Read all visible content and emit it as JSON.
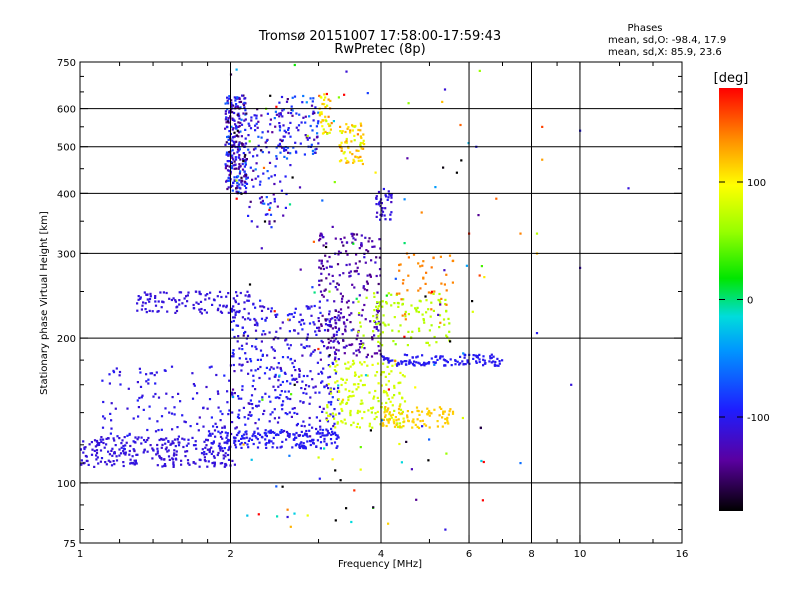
{
  "chart_data": {
    "type": "scatter",
    "title": "Tromsø 20151007 17:58:00-17:59:43",
    "subtitle": "RwPretec (8p)",
    "stats": {
      "heading": "Phases",
      "line_o": "mean, sd,O: -98.4, 17.9",
      "line_x": "mean, sd,X:  85.9, 23.6"
    },
    "xlabel": "Frequency [MHz]",
    "ylabel": "Stationary phase Virtual Height [km]",
    "x_scale": "log",
    "y_scale": "log",
    "xlim": [
      1,
      16
    ],
    "ylim": [
      75,
      750
    ],
    "x_ticks": [
      1,
      2,
      4,
      6,
      8,
      10,
      16
    ],
    "x_tick_labels": [
      "1",
      "2",
      "4",
      "6",
      "8",
      "10",
      "16"
    ],
    "x_minor_ticks": [
      1.2,
      1.4,
      1.6,
      1.8,
      3,
      5,
      7,
      9,
      12,
      14
    ],
    "y_ticks": [
      75,
      100,
      200,
      300,
      400,
      500,
      600,
      750
    ],
    "y_tick_labels": [
      "75",
      "100",
      "200",
      "300",
      "400",
      "500",
      "600",
      "750"
    ],
    "y_minor_ticks": [
      80,
      90,
      110,
      120,
      140,
      160,
      180,
      250,
      350,
      450,
      550,
      650,
      700
    ],
    "grid_x": [
      2,
      4,
      6,
      8,
      10
    ],
    "grid_y": [
      100,
      200,
      300,
      400,
      500,
      600
    ],
    "grid": true,
    "colorbar": {
      "label": "[deg]",
      "min": -180,
      "max": 180,
      "ticks": [
        -100,
        0,
        100
      ],
      "tick_labels": [
        "-100",
        "0",
        "100"
      ]
    },
    "clusters": [
      {
        "f0": 1.0,
        "f1": 2.05,
        "h0": 108,
        "h1": 125,
        "phase": -110,
        "spread": 4,
        "n": 260
      },
      {
        "f0": 1.8,
        "f1": 3.3,
        "h0": 118,
        "h1": 128,
        "phase": -100,
        "spread": 3,
        "n": 160
      },
      {
        "f0": 1.1,
        "f1": 2.0,
        "h0": 115,
        "h1": 175,
        "phase": -105,
        "spread": 8,
        "n": 140
      },
      {
        "f0": 2.0,
        "f1": 3.3,
        "h0": 125,
        "h1": 240,
        "phase": -105,
        "spread": 12,
        "n": 420
      },
      {
        "f0": 1.3,
        "f1": 2.2,
        "h0": 225,
        "h1": 250,
        "phase": -110,
        "spread": 3,
        "n": 120
      },
      {
        "f0": 1.95,
        "f1": 2.15,
        "h0": 400,
        "h1": 640,
        "phase": -115,
        "spread": 35,
        "n": 260
      },
      {
        "f0": 2.15,
        "f1": 2.6,
        "h0": 340,
        "h1": 600,
        "phase": -100,
        "spread": 30,
        "n": 110
      },
      {
        "f0": 2.5,
        "f1": 3.0,
        "h0": 480,
        "h1": 640,
        "phase": -100,
        "spread": 30,
        "n": 90
      },
      {
        "f0": 3.0,
        "f1": 3.2,
        "h0": 530,
        "h1": 650,
        "phase": 110,
        "spread": 25,
        "n": 40
      },
      {
        "f0": 3.3,
        "f1": 3.7,
        "h0": 460,
        "h1": 560,
        "phase": 110,
        "spread": 20,
        "n": 70
      },
      {
        "f0": 3.0,
        "f1": 4.0,
        "h0": 180,
        "h1": 330,
        "phase": -130,
        "spread": 12,
        "n": 240
      },
      {
        "f0": 3.1,
        "f1": 4.5,
        "h0": 130,
        "h1": 180,
        "phase": 80,
        "spread": 6,
        "n": 180
      },
      {
        "f0": 4.0,
        "f1": 5.6,
        "h0": 130,
        "h1": 145,
        "phase": 115,
        "spread": 3,
        "n": 90
      },
      {
        "f0": 4.0,
        "f1": 7.0,
        "h0": 175,
        "h1": 185,
        "phase": -100,
        "spread": 3,
        "n": 130
      },
      {
        "f0": 3.6,
        "f1": 5.5,
        "h0": 190,
        "h1": 250,
        "phase": 70,
        "spread": 4,
        "n": 110
      },
      {
        "f0": 3.9,
        "f1": 4.2,
        "h0": 350,
        "h1": 410,
        "phase": -110,
        "spread": 6,
        "n": 40
      },
      {
        "f0": 4.3,
        "f1": 5.6,
        "h0": 215,
        "h1": 300,
        "phase": 140,
        "spread": 3,
        "n": 45
      },
      {
        "f0": 2.0,
        "f1": 6.5,
        "h0": 80,
        "h1": 750,
        "phase": -40,
        "spread": 160,
        "n": 140
      }
    ],
    "isolated_points": [
      [
        2.6,
        85,
        -110
      ],
      [
        2.6,
        88,
        140
      ],
      [
        3.0,
        113,
        80
      ],
      [
        3.2,
        112,
        100
      ],
      [
        5.3,
        620,
        120
      ],
      [
        6.2,
        500,
        -100
      ],
      [
        6.8,
        390,
        150
      ],
      [
        7.6,
        330,
        140
      ],
      [
        8.2,
        330,
        70
      ],
      [
        8.4,
        550,
        160
      ],
      [
        10.0,
        540,
        -100
      ],
      [
        12.5,
        410,
        -110
      ],
      [
        8.2,
        205,
        -100
      ],
      [
        8.4,
        470,
        130
      ],
      [
        9.6,
        160,
        -110
      ],
      [
        10.0,
        280,
        -120
      ],
      [
        7.6,
        110,
        -60
      ],
      [
        8.2,
        300,
        120
      ],
      [
        6.3,
        270,
        160
      ],
      [
        6.0,
        330,
        170
      ]
    ]
  }
}
